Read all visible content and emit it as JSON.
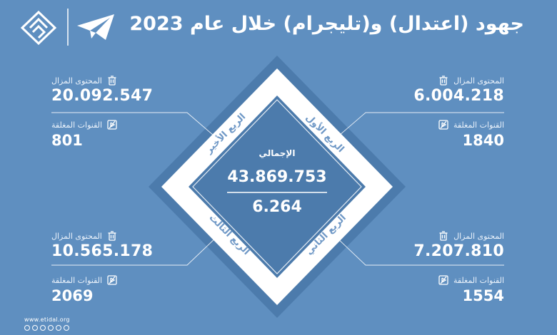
{
  "title": "جهود (اعتدال) و(تليجرام) خلال عام 2023",
  "center": {
    "label": "الإجمالي",
    "total_removed": "43.869.753",
    "total_closed": "6.264"
  },
  "quarters": {
    "q1": {
      "name": "الربع الأول",
      "removed_label": "المحتوى المزال",
      "removed": "6.004.218",
      "closed_label": "القنوات المغلقة",
      "closed": "1840"
    },
    "q2": {
      "name": "الربع الثاني",
      "removed_label": "المحتوى المزال",
      "removed": "7.207.810",
      "closed_label": "القنوات المغلقة",
      "closed": "1554"
    },
    "q3": {
      "name": "الربع الثالث",
      "removed_label": "المحتوى المزال",
      "removed": "10.565.178",
      "closed_label": "القنوات المغلقة",
      "closed": "2069"
    },
    "q4": {
      "name": "الربع الأخير",
      "removed_label": "المحتوى المزال",
      "removed": "20.092.547",
      "closed_label": "القنوات المغلقة",
      "closed": "801"
    }
  },
  "footer": {
    "website": "www.etidal.org"
  },
  "icons": {
    "removed": "trash-icon",
    "closed": "closed-channel-icon",
    "telegram": "telegram-logo-icon",
    "etidal": "etidal-logo-icon"
  },
  "colors": {
    "background": "#5f8fc0",
    "diamond_frame": "#4c7bac",
    "diamond_panels": "#ffffff",
    "text": "#ffffff",
    "quarter_text": "#6f98c6"
  }
}
